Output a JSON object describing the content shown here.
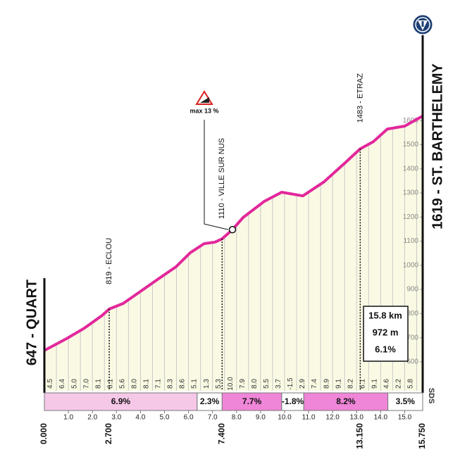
{
  "chart_data": {
    "type": "area",
    "x": [
      0,
      0.94,
      1.67,
      2.4,
      2.7,
      3.28,
      4.0,
      4.75,
      5.48,
      6.07,
      6.65,
      7.1,
      7.4,
      7.83,
      8.27,
      9.15,
      9.88,
      10.76,
      11.64,
      12.52,
      13.15,
      13.7,
      14.28,
      15.0,
      15.75
    ],
    "series": [
      {
        "color": "#e2279b",
        "values": [
          647,
          697,
          740,
          792,
          819,
          842,
          892,
          944,
          994,
          1052,
          1090,
          1096,
          1110,
          1148,
          1198,
          1265,
          1303,
          1288,
          1346,
          1425,
          1483,
          1513,
          1565,
          1577,
          1619
        ]
      }
    ],
    "fill": "#fafae4",
    "xlim": [
      0,
      15.75
    ],
    "ylim": [
      480,
      1700
    ],
    "xticks": [
      {
        "value": 1,
        "label": "1.0"
      },
      {
        "value": 2,
        "label": "2.0"
      },
      {
        "value": 3,
        "label": "3.0"
      },
      {
        "value": 4,
        "label": "4.0"
      },
      {
        "value": 5,
        "label": "5.0"
      },
      {
        "value": 6,
        "label": "6.0"
      },
      {
        "value": 7,
        "label": "7.0"
      },
      {
        "value": 8,
        "label": "8.0"
      },
      {
        "value": 9,
        "label": "9.0"
      },
      {
        "value": 10,
        "label": "10.0"
      },
      {
        "value": 11,
        "label": "11.0"
      },
      {
        "value": 12,
        "label": "12.0"
      },
      {
        "value": 13,
        "label": "13.0"
      },
      {
        "value": 14,
        "label": "14.0"
      },
      {
        "value": 15,
        "label": "15.0"
      }
    ],
    "yticks": [
      600,
      700,
      800,
      900,
      1000,
      1100,
      1200,
      1300,
      1400,
      1500,
      1600
    ],
    "distance_marks": [
      {
        "value": 0,
        "label": "0.000"
      },
      {
        "value": 2.7,
        "label": "2.700"
      },
      {
        "value": 7.4,
        "label": "7.400"
      },
      {
        "value": 13.15,
        "label": "13.150"
      },
      {
        "value": 15.75,
        "label": "15.750"
      }
    ],
    "start_label": "647 - QUART",
    "finish_label": "1619 - ST. BARTHELEMY",
    "waypoints": [
      {
        "label": "819 - ECLOU",
        "x": 2.7
      },
      {
        "label": "1110 - VILLE SUR NUS",
        "x": 7.4
      },
      {
        "label": "1483 - ETRAZ",
        "x": 13.15
      }
    ],
    "max_grade": {
      "label": "max 13 %",
      "x": 7.83
    },
    "half_km_grades": [
      "4.5",
      "6.4",
      "5.0",
      "7.0",
      "8.1",
      "6.1",
      "5.6",
      "8.0",
      "8.1",
      "7.1",
      "8.3",
      "8.6",
      "5.1",
      "1.3",
      "5.3",
      "10.0",
      "7.9",
      "8.0",
      "5.5",
      "3.7",
      "-1.5",
      "2.9",
      "7.4",
      "8.9",
      "9.1",
      "8.2",
      "6.1",
      "9.1",
      "4.6",
      "2.2",
      "5.8"
    ],
    "segments": [
      {
        "start": 0,
        "end": 6.36,
        "label": "6.9%",
        "color": "#f6c8e8"
      },
      {
        "start": 6.36,
        "end": 7.4,
        "label": "2.3%",
        "color": "#ffffff"
      },
      {
        "start": 7.4,
        "end": 9.88,
        "label": "7.7%",
        "color": "#ef86d8"
      },
      {
        "start": 9.88,
        "end": 10.8,
        "label": "-1.8%",
        "color": "#ffffff"
      },
      {
        "start": 10.8,
        "end": 14.3,
        "label": "8.2%",
        "color": "#ef86d8"
      },
      {
        "start": 14.3,
        "end": 15.75,
        "label": "3.5%",
        "color": "#ffffff"
      }
    ],
    "summary": [
      "15.8 km",
      "972 m",
      "6.1%"
    ],
    "footer_mark": "SDS"
  }
}
